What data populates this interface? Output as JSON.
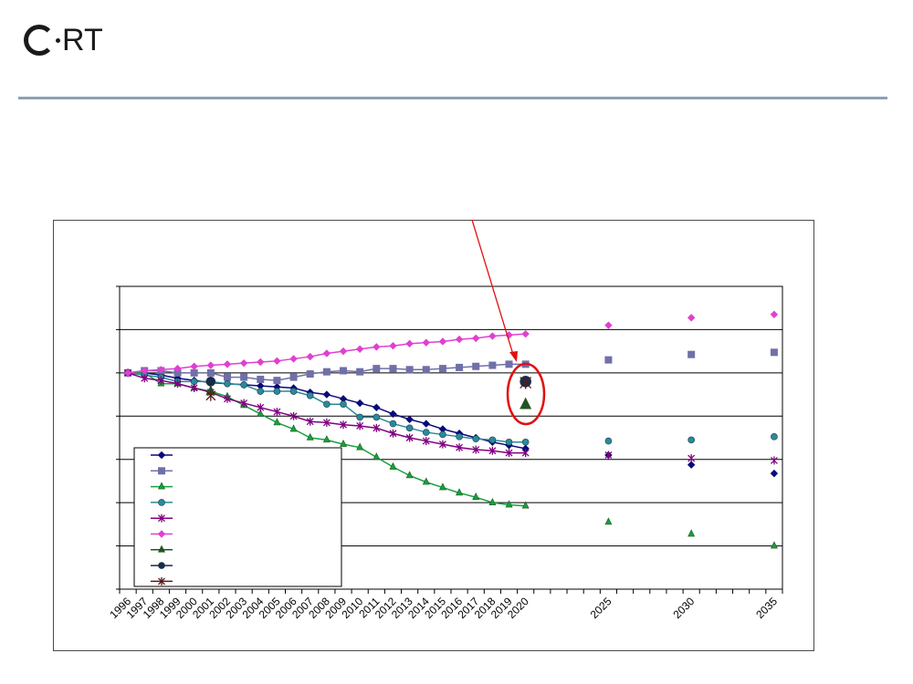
{
  "brand": {
    "logo_text": "RT"
  },
  "colors": {
    "rule": "#8aa1b5",
    "annotation": "#e01010"
  },
  "chart_data": {
    "type": "line",
    "xlabel": "",
    "ylabel": "",
    "grid": true,
    "legend_placement": "bottom-left",
    "y_tick_count": 7,
    "categories": [
      "1996",
      "1997",
      "1998",
      "1999",
      "2000",
      "2001",
      "2002",
      "2003",
      "2004",
      "2005",
      "2006",
      "2007",
      "2008",
      "2009",
      "2010",
      "2011",
      "2012",
      "2013",
      "2014",
      "2015",
      "2016",
      "2017",
      "2018",
      "2019",
      "2020",
      "2025",
      "2030",
      "2035"
    ],
    "x_slots": 40,
    "series": [
      {
        "color": "#0a0a7a",
        "marker": "diamond",
        "values": [
          100,
          100,
          99,
          97.5,
          96.5,
          95.5,
          95,
          94.5,
          94,
          93.5,
          93,
          91,
          90,
          88,
          86,
          84,
          81,
          78.5,
          76.5,
          74,
          72,
          70,
          68,
          66.5,
          65,
          null,
          null,
          null
        ],
        "proj": [
          {
            "x": "2025",
            "y": 62
          },
          {
            "x": "2030",
            "y": 57.5
          },
          {
            "x": "2035",
            "y": 53.5
          }
        ]
      },
      {
        "color": "#7070a8",
        "marker": "square",
        "values": [
          100,
          101,
          101,
          100,
          100,
          100,
          98,
          98,
          97,
          96.5,
          98,
          99.5,
          100.5,
          101,
          100.5,
          102,
          102,
          101.5,
          101.5,
          102,
          102.5,
          103,
          103.5,
          104,
          104,
          null,
          null,
          null
        ],
        "proj": [
          {
            "x": "2025",
            "y": 106
          },
          {
            "x": "2030",
            "y": 108.5
          },
          {
            "x": "2035",
            "y": 109.5
          }
        ]
      },
      {
        "color": "#18a040",
        "marker": "triangle",
        "values": [
          100,
          100,
          95,
          95,
          93,
          91.5,
          89,
          85,
          81,
          77,
          74,
          70,
          69,
          67,
          65.5,
          61,
          56.5,
          52.5,
          49.5,
          47,
          44.5,
          42.5,
          40,
          39,
          38.5,
          null,
          null,
          null
        ],
        "proj": [
          {
            "x": "2025",
            "y": 31
          },
          {
            "x": "2030",
            "y": 25.5
          },
          {
            "x": "2035",
            "y": 20
          }
        ]
      },
      {
        "color": "#2a8a9a",
        "marker": "circle",
        "values": [
          100,
          99,
          98,
          96,
          96,
          96,
          95,
          94.5,
          91.5,
          91.5,
          91.5,
          89.5,
          85.5,
          85.5,
          79.5,
          79.5,
          76.5,
          74.5,
          72.5,
          71.5,
          70.5,
          69.5,
          69,
          68,
          68,
          null,
          null,
          null
        ],
        "proj": [
          {
            "x": "2025",
            "y": 68.5
          },
          {
            "x": "2030",
            "y": 69
          },
          {
            "x": "2035",
            "y": 70.5
          }
        ]
      },
      {
        "color": "#800080",
        "marker": "star",
        "values": [
          100,
          97.5,
          96.5,
          95,
          93,
          91,
          88,
          86,
          84,
          82,
          80,
          77.5,
          77,
          76,
          75.5,
          74.5,
          72,
          70,
          68.5,
          67,
          65.5,
          64.5,
          64,
          63,
          63,
          null,
          null,
          null
        ],
        "proj": [
          {
            "x": "2025",
            "y": 62
          },
          {
            "x": "2030",
            "y": 60.5
          },
          {
            "x": "2035",
            "y": 59.5
          }
        ]
      },
      {
        "color": "#e040d0",
        "marker": "diamond",
        "values": [
          100,
          101,
          101.5,
          102,
          103,
          103.5,
          104,
          104.5,
          105,
          105.5,
          106.5,
          107.5,
          109,
          110,
          111,
          112,
          112.5,
          113.5,
          114,
          114.5,
          115.5,
          116,
          117,
          117.5,
          118,
          null,
          null,
          null
        ],
        "proj": [
          {
            "x": "2025",
            "y": 122
          },
          {
            "x": "2030",
            "y": 125.5
          },
          {
            "x": "2035",
            "y": 127
          }
        ]
      }
    ],
    "special_points": [
      {
        "color": "#285028",
        "marker": "triangle",
        "points": [
          {
            "x": "2001",
            "y": 91.5
          },
          {
            "x": "2020",
            "y": 85.5
          }
        ]
      },
      {
        "color": "#1a2a4a",
        "marker": "circle",
        "points": [
          {
            "x": "2001",
            "y": 96
          },
          {
            "x": "2020",
            "y": 96
          }
        ]
      },
      {
        "color": "#5a1a1a",
        "marker": "star",
        "points": [
          {
            "x": "2001",
            "y": 89.5
          },
          {
            "x": "2020",
            "y": 95.5
          }
        ]
      }
    ]
  }
}
